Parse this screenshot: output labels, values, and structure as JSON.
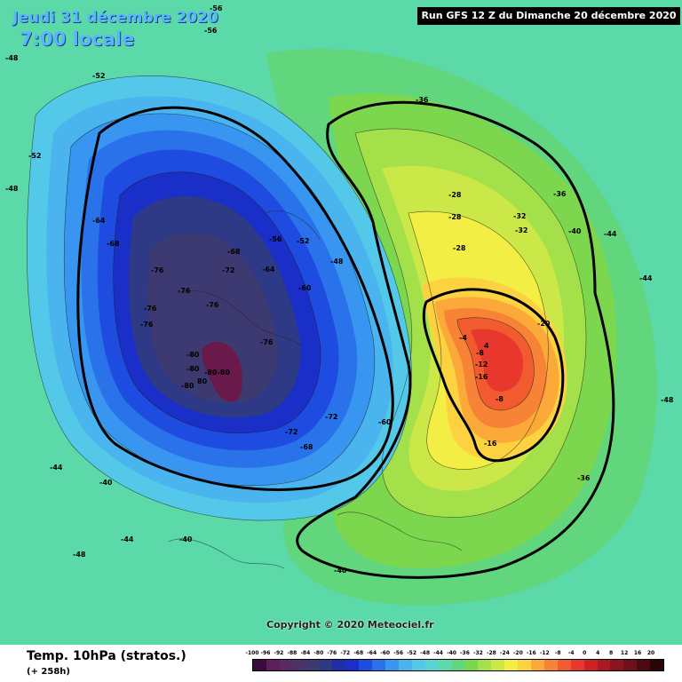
{
  "header": {
    "date": "Jeudi 31 décembre 2020",
    "time": "7:00 locale",
    "run": "Run GFS 12 Z du Dimanche 20 décembre 2020"
  },
  "footer": {
    "variable": "Temp. 10hPa (stratos.)",
    "lead": "(+ 258h)",
    "copyright": "Copyright © 2020 Meteociel.fr"
  },
  "legend": {
    "unit_steps": [
      "-100",
      "-96",
      "-92",
      "-88",
      "-84",
      "-80",
      "-76",
      "-72",
      "-68",
      "-64",
      "-60",
      "-56",
      "-52",
      "-48",
      "-44",
      "-40",
      "-36",
      "-32",
      "-28",
      "-24",
      "-20",
      "-16",
      "-12",
      "-8",
      "-4",
      "0",
      "4",
      "8",
      "12",
      "16",
      "20"
    ],
    "colors": [
      "#3a0a3a",
      "#5c1e5c",
      "#5a2a66",
      "#4a3466",
      "#3c3a70",
      "#2e3a86",
      "#1e2ea8",
      "#1a2ec8",
      "#1f4ce0",
      "#2a72ea",
      "#3896f0",
      "#49b4ee",
      "#53c8e8",
      "#57d4cf",
      "#5bd9a8",
      "#62d67c",
      "#7cd64e",
      "#a4e04a",
      "#cce848",
      "#f2ee44",
      "#fcd240",
      "#fbaa3a",
      "#f78436",
      "#f25a30",
      "#e8382e",
      "#cc2226",
      "#aa1a20",
      "#8c141c",
      "#6e1018",
      "#4c0a10",
      "#2a0508"
    ]
  },
  "map_labels": [
    {
      "text": "-76"
    },
    {
      "text": "-76"
    },
    {
      "text": "-76"
    },
    {
      "text": "-76"
    },
    {
      "text": "-76"
    },
    {
      "text": "-76"
    },
    {
      "text": "-80"
    },
    {
      "text": "-80"
    },
    {
      "text": "-80-80"
    },
    {
      "text": "-80"
    },
    {
      "text": "80"
    },
    {
      "text": "-72"
    },
    {
      "text": "-72"
    },
    {
      "text": "-72"
    },
    {
      "text": "-68"
    },
    {
      "text": "-68"
    },
    {
      "text": "-68"
    },
    {
      "text": "-64"
    },
    {
      "text": "-64"
    },
    {
      "text": "-60"
    },
    {
      "text": "-60"
    },
    {
      "text": "-56"
    },
    {
      "text": "-52"
    },
    {
      "text": "-48"
    },
    {
      "text": "-48"
    },
    {
      "text": "-48"
    },
    {
      "text": "-48"
    },
    {
      "text": "-48"
    },
    {
      "text": "-44"
    },
    {
      "text": "-44"
    },
    {
      "text": "-44"
    },
    {
      "text": "-44"
    },
    {
      "text": "-40"
    },
    {
      "text": "-40"
    },
    {
      "text": "-40"
    },
    {
      "text": "-40"
    },
    {
      "text": "-36"
    },
    {
      "text": "-36"
    },
    {
      "text": "-36"
    },
    {
      "text": "-32"
    },
    {
      "text": "-32"
    },
    {
      "text": "-28"
    },
    {
      "text": "-28"
    },
    {
      "text": "-28"
    },
    {
      "text": "-20"
    },
    {
      "text": "-16"
    },
    {
      "text": "-16"
    },
    {
      "text": "-12"
    },
    {
      "text": "-8"
    },
    {
      "text": "-8"
    },
    {
      "text": "-4"
    },
    {
      "text": "4"
    },
    {
      "text": "-52"
    },
    {
      "text": "-52"
    },
    {
      "text": "-56"
    },
    {
      "text": "-56"
    }
  ]
}
